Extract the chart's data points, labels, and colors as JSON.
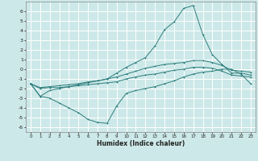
{
  "title": "",
  "xlabel": "Humidex (Indice chaleur)",
  "ylabel": "",
  "background_color": "#cde8e8",
  "grid_color": "#ffffff",
  "line_color": "#2d7d7d",
  "x": [
    0,
    1,
    2,
    3,
    4,
    5,
    6,
    7,
    8,
    9,
    10,
    11,
    12,
    13,
    14,
    15,
    16,
    17,
    18,
    19,
    20,
    21,
    22,
    23
  ],
  "y_top": [
    -1.5,
    -2.8,
    -2.2,
    -2.0,
    -1.8,
    -1.6,
    -1.4,
    -1.2,
    -1.0,
    -0.4,
    0.2,
    0.7,
    1.2,
    2.4,
    4.1,
    4.9,
    6.3,
    6.6,
    3.6,
    1.5,
    0.5,
    -0.4,
    -0.4,
    -0.6
  ],
  "y_mid_upper": [
    -1.5,
    -1.9,
    -1.8,
    -1.7,
    -1.6,
    -1.5,
    -1.3,
    -1.2,
    -1.0,
    -0.8,
    -0.5,
    -0.2,
    0.1,
    0.3,
    0.5,
    0.6,
    0.7,
    0.9,
    0.9,
    0.7,
    0.4,
    -0.1,
    -0.2,
    -0.3
  ],
  "y_mid_lower": [
    -1.5,
    -2.0,
    -1.9,
    -1.9,
    -1.8,
    -1.7,
    -1.6,
    -1.5,
    -1.4,
    -1.3,
    -1.0,
    -0.8,
    -0.6,
    -0.5,
    -0.3,
    -0.1,
    0.0,
    0.2,
    0.2,
    0.1,
    -0.2,
    -0.6,
    -0.7,
    -0.8
  ],
  "y_bottom": [
    -1.5,
    -2.8,
    -3.0,
    -3.5,
    -4.0,
    -4.5,
    -5.2,
    -5.5,
    -5.6,
    -3.8,
    -2.5,
    -2.2,
    -2.0,
    -1.8,
    -1.5,
    -1.2,
    -0.8,
    -0.5,
    -0.3,
    -0.2,
    0.0,
    0.0,
    -0.5,
    -1.5
  ],
  "ylim": [
    -6.5,
    7.0
  ],
  "yticks": [
    -6,
    -5,
    -4,
    -3,
    -2,
    -1,
    0,
    1,
    2,
    3,
    4,
    5,
    6
  ],
  "xticks": [
    0,
    1,
    2,
    3,
    4,
    5,
    6,
    7,
    8,
    9,
    10,
    11,
    12,
    13,
    14,
    15,
    16,
    17,
    18,
    19,
    20,
    21,
    22,
    23
  ],
  "xlim": [
    -0.5,
    23.5
  ]
}
